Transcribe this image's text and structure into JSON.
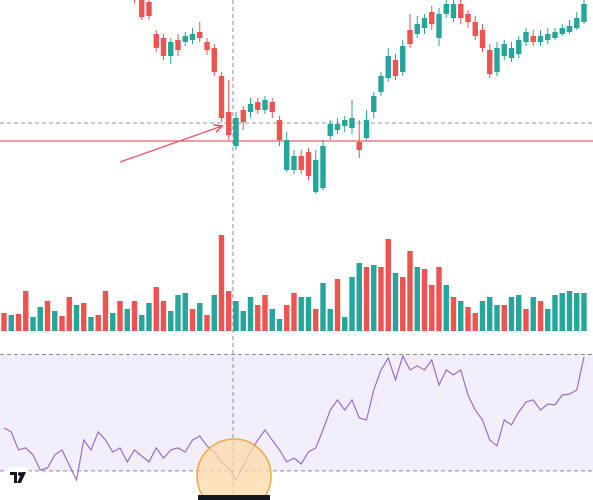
{
  "chart_data": {
    "type": "candlestick",
    "open": [
      null,
      null,
      null,
      null,
      null,
      null,
      null,
      null,
      null,
      null,
      null,
      null,
      null,
      null,
      null,
      null,
      null,
      null,
      210,
      200,
      198,
      166,
      162,
      144,
      160,
      158,
      160,
      168,
      158,
      152,
      124,
      88,
      54,
      90,
      88,
      98,
      90,
      98,
      80,
      30,
      30,
      44,
      48,
      8,
      12,
      64,
      70,
      74,
      72,
      58,
      62,
      88,
      108,
      122,
      140,
      128,
      170,
      166,
      172,
      188,
      162,
      186,
      182,
      196,
      186,
      178,
      170,
      150,
      128,
      144,
      142,
      146,
      158,
      164,
      158,
      160,
      162,
      166,
      168,
      172,
      178
    ],
    "close": [
      null,
      null,
      null,
      null,
      null,
      null,
      null,
      null,
      null,
      null,
      null,
      null,
      null,
      null,
      null,
      null,
      null,
      null,
      200,
      183,
      184,
      152,
      144,
      158,
      150,
      164,
      166,
      162,
      150,
      128,
      82,
      65,
      82,
      78,
      96,
      90,
      100,
      88,
      60,
      60,
      44,
      30,
      24,
      40,
      54,
      76,
      76,
      80,
      82,
      50,
      80,
      104,
      124,
      144,
      124,
      154,
      156,
      176,
      182,
      176,
      186,
      196,
      196,
      182,
      178,
      164,
      152,
      126,
      152,
      156,
      152,
      160,
      168,
      158,
      164,
      166,
      168,
      172,
      174,
      182,
      196
    ],
    "high": [
      null,
      null,
      null,
      null,
      null,
      null,
      null,
      null,
      null,
      null,
      null,
      null,
      null,
      null,
      null,
      null,
      null,
      null,
      215,
      205,
      203,
      170,
      166,
      162,
      166,
      168,
      172,
      178,
      162,
      156,
      128,
      120,
      88,
      94,
      102,
      102,
      104,
      102,
      84,
      68,
      50,
      50,
      52,
      50,
      60,
      80,
      82,
      84,
      100,
      80,
      90,
      108,
      128,
      152,
      146,
      160,
      186,
      184,
      186,
      194,
      192,
      200,
      200,
      200,
      190,
      184,
      176,
      156,
      158,
      160,
      158,
      164,
      172,
      170,
      170,
      172,
      172,
      176,
      180,
      188,
      200
    ],
    "low": [
      null,
      null,
      null,
      null,
      null,
      null,
      null,
      null,
      null,
      null,
      null,
      null,
      null,
      null,
      null,
      null,
      null,
      null,
      197,
      180,
      180,
      148,
      140,
      136,
      144,
      154,
      156,
      158,
      145,
      124,
      78,
      60,
      50,
      70,
      82,
      86,
      86,
      82,
      54,
      28,
      26,
      26,
      20,
      6,
      10,
      60,
      66,
      68,
      66,
      42,
      60,
      82,
      104,
      118,
      120,
      124,
      152,
      162,
      166,
      170,
      154,
      182,
      178,
      176,
      172,
      160,
      148,
      122,
      124,
      140,
      138,
      142,
      154,
      154,
      154,
      156,
      160,
      164,
      166,
      170,
      176
    ],
    "up_color": "#26a69a",
    "down_color": "#ef5350",
    "ylim": [
      0,
      200
    ],
    "price_lines": [
      {
        "value": 77,
        "color": "#9598a1",
        "dashed": true
      },
      {
        "value": 59,
        "color": "#f23645",
        "dashed": false
      }
    ],
    "volume": {
      "ylim": [
        0,
        101
      ],
      "values": [
        18,
        16,
        17,
        40,
        14,
        24,
        30,
        20,
        15,
        34,
        26,
        28,
        14,
        16,
        40,
        18,
        30,
        22,
        30,
        16,
        28,
        44,
        30,
        20,
        36,
        38,
        22,
        28,
        16,
        36,
        96,
        40,
        30,
        20,
        34,
        26,
        36,
        22,
        12,
        26,
        38,
        34,
        34,
        22,
        48,
        22,
        52,
        14,
        54,
        68,
        64,
        66,
        64,
        92,
        58,
        54,
        80,
        64,
        62,
        46,
        64,
        46,
        34,
        30,
        24,
        18,
        30,
        34,
        26,
        26,
        34,
        36,
        22,
        34,
        30,
        22,
        36,
        38,
        40,
        38,
        38
      ],
      "colors": [
        "#ef5350",
        "#26a69a",
        "#ef5350",
        "#ef5350",
        "#26a69a",
        "#26a69a",
        "#ef5350",
        "#26a69a",
        "#ef5350",
        "#ef5350",
        "#26a69a",
        "#ef5350",
        "#26a69a",
        "#ef5350",
        "#ef5350",
        "#26a69a",
        "#ef5350",
        "#26a69a",
        "#ef5350",
        "#26a69a",
        "#26a69a",
        "#ef5350",
        "#ef5350",
        "#26a69a",
        "#26a69a",
        "#26a69a",
        "#ef5350",
        "#26a69a",
        "#ef5350",
        "#26a69a",
        "#ef5350",
        "#ef5350",
        "#26a69a",
        "#26a69a",
        "#26a69a",
        "#ef5350",
        "#ef5350",
        "#26a69a",
        "#26a69a",
        "#ef5350",
        "#ef5350",
        "#26a69a",
        "#26a69a",
        "#ef5350",
        "#26a69a",
        "#26a69a",
        "#ef5350",
        "#26a69a",
        "#26a69a",
        "#26a69a",
        "#ef5350",
        "#26a69a",
        "#ef5350",
        "#ef5350",
        "#26a69a",
        "#ef5350",
        "#ef5350",
        "#26a69a",
        "#ef5350",
        "#ef5350",
        "#ef5350",
        "#26a69a",
        "#ef5350",
        "#26a69a",
        "#ef5350",
        "#ef5350",
        "#26a69a",
        "#26a69a",
        "#26a69a",
        "#ef5350",
        "#26a69a",
        "#26a69a",
        "#ef5350",
        "#26a69a",
        "#ef5350",
        "#26a69a",
        "#26a69a",
        "#26a69a",
        "#26a69a",
        "#26a69a",
        "#26a69a"
      ]
    },
    "rsi": {
      "ylim": [
        20,
        75
      ],
      "color": "#9c6bd6",
      "band_color": "#f3eefb",
      "levels": [
        70,
        30
      ],
      "values": [
        44.8,
        43.4,
        37.2,
        37.9,
        35.5,
        30.3,
        31.0,
        35.5,
        37.2,
        32.0,
        26.9,
        40.6,
        37.2,
        43.4,
        40.6,
        36.5,
        37.9,
        33.1,
        37.2,
        35.1,
        33.1,
        37.9,
        34.4,
        37.2,
        37.9,
        36.5,
        40.6,
        42.0,
        38.6,
        36.5,
        33.1,
        31.0,
        26.9,
        31.7,
        36.5,
        40.6,
        44.1,
        40.6,
        37.2,
        33.1,
        34.4,
        32.4,
        36.5,
        37.9,
        44.1,
        50.9,
        54.4,
        50.9,
        54.4,
        48.2,
        47.5,
        57.8,
        64.7,
        68.8,
        61.3,
        69.5,
        64.7,
        66.1,
        64.7,
        68.1,
        59.5,
        64.7,
        63.0,
        64.7,
        56.1,
        50.9,
        47.5,
        40.6,
        38.6,
        47.5,
        45.8,
        50.3,
        53.7,
        54.4,
        50.9,
        53.0,
        52.7,
        56.1,
        56.4,
        57.8,
        69.2
      ]
    }
  }
}
